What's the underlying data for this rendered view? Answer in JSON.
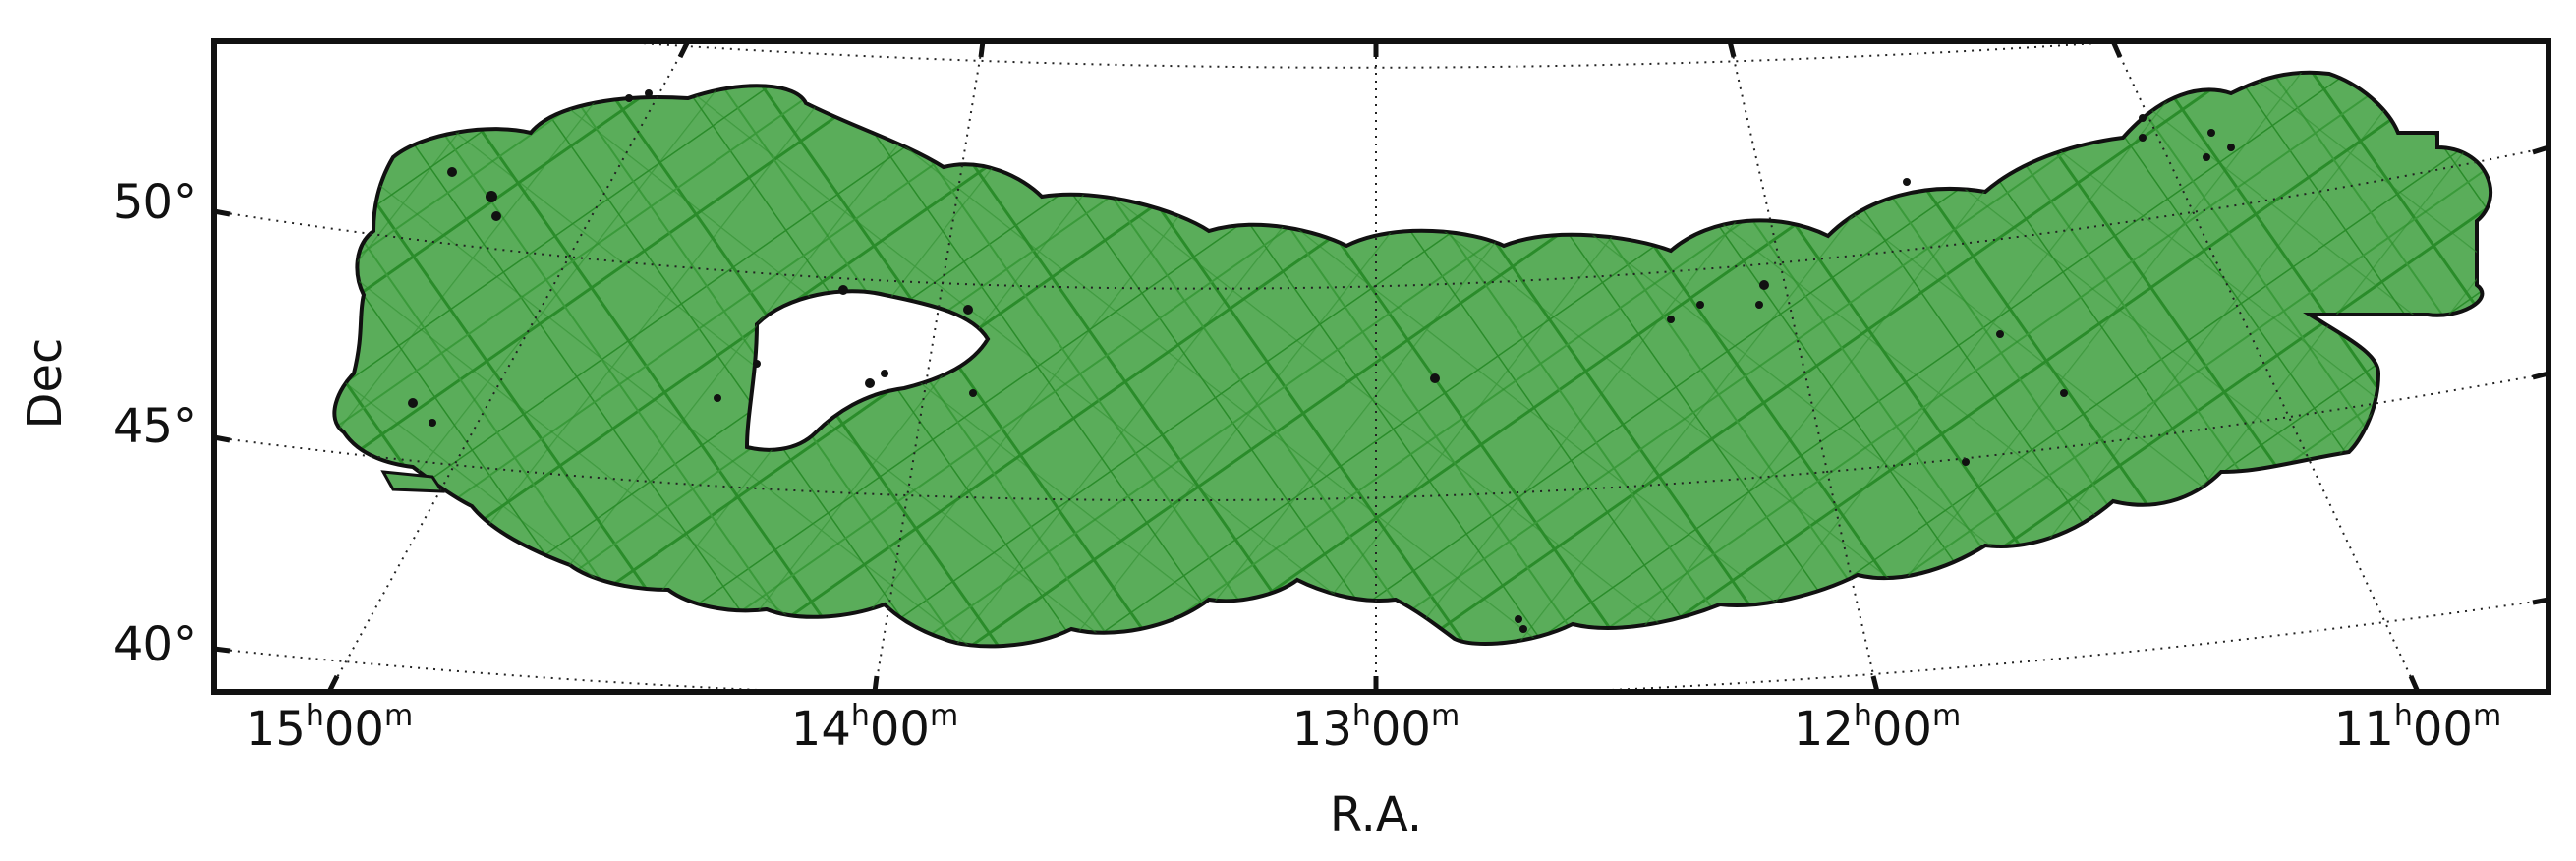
{
  "map": {
    "projection": "conic sky projection (R.A./Dec grid)",
    "xlabel": "R.A.",
    "ylabel": "Dec",
    "ra_ticks": [
      {
        "h": "15",
        "m": "00",
        "ra_deg": 225
      },
      {
        "h": "14",
        "m": "00",
        "ra_deg": 210
      },
      {
        "h": "13",
        "m": "00",
        "ra_deg": 195
      },
      {
        "h": "12",
        "m": "00",
        "ra_deg": 180
      },
      {
        "h": "11",
        "m": "00",
        "ra_deg": 165
      }
    ],
    "dec_ticks": [
      {
        "label": "50°",
        "dec_deg": 50
      },
      {
        "label": "45°",
        "dec_deg": 45
      },
      {
        "label": "40°",
        "dec_deg": 40
      }
    ],
    "ra_unit_h": "h",
    "ra_unit_m": "m",
    "footprint": {
      "fill_color": "#5aad5a",
      "tile_line_color": "#2a8c2a",
      "outline_color": "#111111",
      "grid_color": "#222222",
      "description": "green survey footprint composed of overlapping pointings with a hole near RA 14h, Dec 46.5°"
    },
    "grid": "dotted"
  }
}
